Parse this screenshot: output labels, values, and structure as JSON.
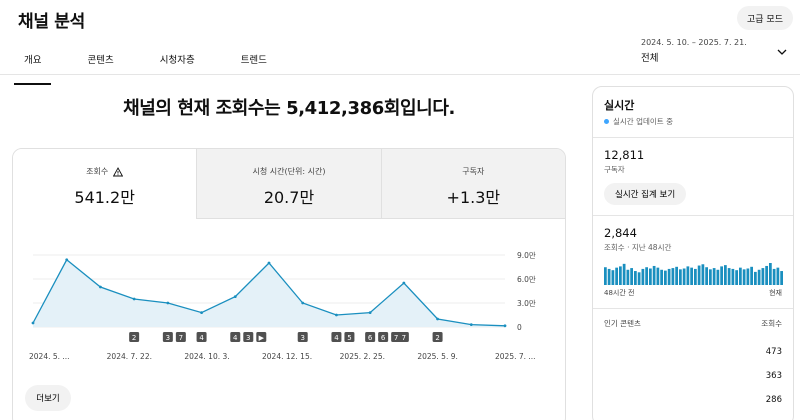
{
  "header": {
    "title": "채널 분석",
    "advanced_label": "고급 모드"
  },
  "tabs": [
    {
      "label": "개요",
      "active": true
    },
    {
      "label": "콘텐츠",
      "active": false
    },
    {
      "label": "시청자층",
      "active": false
    },
    {
      "label": "트렌드",
      "active": false
    }
  ],
  "date_range": {
    "dates": "2024. 5. 10. – 2025. 7. 21.",
    "label": "전체"
  },
  "headline": "채널의 현재 조회수는 5,412,386회입니다.",
  "metrics": [
    {
      "label": "조회수",
      "value": "541.2만",
      "warning": true
    },
    {
      "label": "시청 시간(단위: 시간)",
      "value": "20.7만"
    },
    {
      "label": "구독자",
      "value": "+1.3만"
    }
  ],
  "more_label": "더보기",
  "chart_data": {
    "type": "area",
    "color": "#1a8fbf",
    "y_ticks": [
      "9.0만",
      "6.0만",
      "3.0만",
      "0"
    ],
    "ylim": [
      0,
      90000
    ],
    "x_tick_labels": [
      "2024. 5. ...",
      "2024. 7. 22.",
      "2024. 10. 3.",
      "2024. 12. 15.",
      "2025. 2. 25.",
      "2025. 5. 9.",
      "2025. 7. ..."
    ],
    "x": [
      "2024. 5.",
      "2024. 6.",
      "2024. 7.",
      "2024. 8.",
      "2024. 9.",
      "2024. 10.",
      "2024. 11.",
      "2024. 12.",
      "2025. 1.",
      "2025. 2.",
      "2025. 3.",
      "2025. 4.",
      "2025. 5.",
      "2025. 6.",
      "2025. 7."
    ],
    "values": [
      5000,
      84000,
      50000,
      35000,
      30000,
      18000,
      38000,
      80000,
      30000,
      15000,
      18000,
      55000,
      10000,
      3000,
      1500
    ],
    "markers": [
      {
        "x": "2024. 8.",
        "label": "2"
      },
      {
        "x": "2024. 9.",
        "label": "3"
      },
      {
        "x": "2024. 9.",
        "label": "7"
      },
      {
        "x": "2024. 10.",
        "label": "4"
      },
      {
        "x": "2024. 11.",
        "label": "4"
      },
      {
        "x": "2024. 11.",
        "label": "3"
      },
      {
        "x": "2024. 11.",
        "label": "▶"
      },
      {
        "x": "2025. 1.",
        "label": "3"
      },
      {
        "x": "2025. 2.",
        "label": "4"
      },
      {
        "x": "2025. 2.",
        "label": "5"
      },
      {
        "x": "2025. 3.",
        "label": "6"
      },
      {
        "x": "2025. 3.",
        "label": "6"
      },
      {
        "x": "2025. 3.",
        "label": "7"
      },
      {
        "x": "2025. 4.",
        "label": "7"
      },
      {
        "x": "2025. 5.",
        "label": "2"
      }
    ]
  },
  "realtime": {
    "title": "실시간",
    "status": "실시간 업데이트 중",
    "subscribers": "12,811",
    "subscribers_label": "구독자",
    "cta_label": "실시간 집계 보기",
    "views": "2,844",
    "views_label": "조회수 · 지난 48시간",
    "bar_color": "#1a8fbf",
    "bars": [
      42,
      38,
      35,
      41,
      44,
      50,
      36,
      40,
      33,
      30,
      38,
      42,
      39,
      45,
      41,
      36,
      34,
      38,
      40,
      43,
      37,
      39,
      44,
      41,
      38,
      46,
      49,
      42,
      37,
      40,
      36,
      44,
      47,
      40,
      38,
      35,
      41,
      37,
      39,
      43,
      31,
      36,
      40,
      45,
      52,
      38,
      41,
      33
    ],
    "axis_left": "48시간 전",
    "axis_right": "현재",
    "popular_label": "인기 콘텐츠",
    "popular_metric": "조회수",
    "popular_values": [
      "473",
      "363",
      "286"
    ]
  }
}
